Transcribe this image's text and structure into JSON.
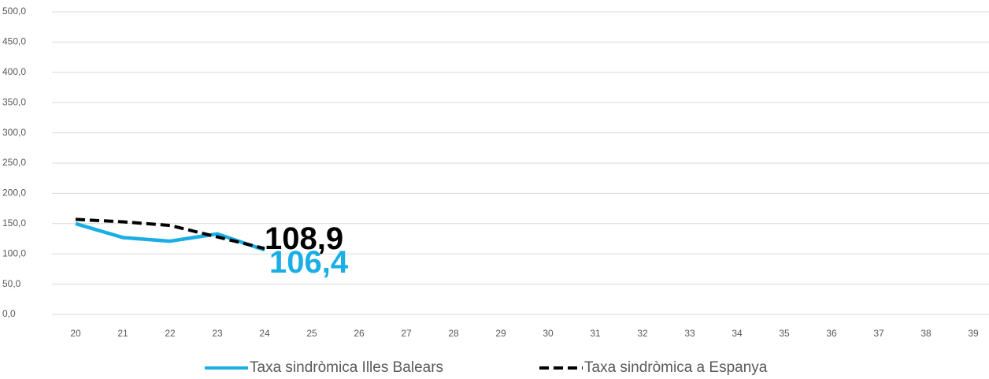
{
  "chart_data": {
    "type": "line",
    "categories": [
      "20",
      "21",
      "22",
      "23",
      "24",
      "25",
      "26",
      "27",
      "28",
      "29",
      "30",
      "31",
      "32",
      "33",
      "34",
      "35",
      "36",
      "37",
      "38",
      "39"
    ],
    "series": [
      {
        "name": "Taxa sindròmica Illes Balears",
        "color": "#1aaee5",
        "dashed": false,
        "values": [
          150,
          127,
          121,
          133,
          106.4,
          null,
          null,
          null,
          null,
          null,
          null,
          null,
          null,
          null,
          null,
          null,
          null,
          null,
          null,
          null
        ],
        "value_labels": [
          null,
          null,
          null,
          null,
          "106,4",
          null,
          null,
          null,
          null,
          null,
          null,
          null,
          null,
          null,
          null,
          null,
          null,
          null,
          null,
          null
        ]
      },
      {
        "name": "Taxa sindròmica a Espanya",
        "color": "#000000",
        "dashed": true,
        "values": [
          157,
          153,
          147,
          128,
          108.9,
          null,
          null,
          null,
          null,
          null,
          null,
          null,
          null,
          null,
          null,
          null,
          null,
          null,
          null,
          null
        ],
        "value_labels": [
          null,
          null,
          null,
          null,
          "108,9",
          null,
          null,
          null,
          null,
          null,
          null,
          null,
          null,
          null,
          null,
          null,
          null,
          null,
          null,
          null
        ]
      }
    ],
    "ylim": [
      0,
      500
    ],
    "yticks": [
      {
        "value": 0,
        "label": "0,0"
      },
      {
        "value": 50,
        "label": "50,0"
      },
      {
        "value": 100,
        "label": "100,0"
      },
      {
        "value": 150,
        "label": "150,0"
      },
      {
        "value": 200,
        "label": "200,0"
      },
      {
        "value": 250,
        "label": "250,0"
      },
      {
        "value": 300,
        "label": "300,0"
      },
      {
        "value": 350,
        "label": "350,0"
      },
      {
        "value": 400,
        "label": "400,0"
      },
      {
        "value": 450,
        "label": "450,0"
      },
      {
        "value": 500,
        "label": "500,0"
      }
    ],
    "grid": true,
    "legend": "bottom"
  }
}
